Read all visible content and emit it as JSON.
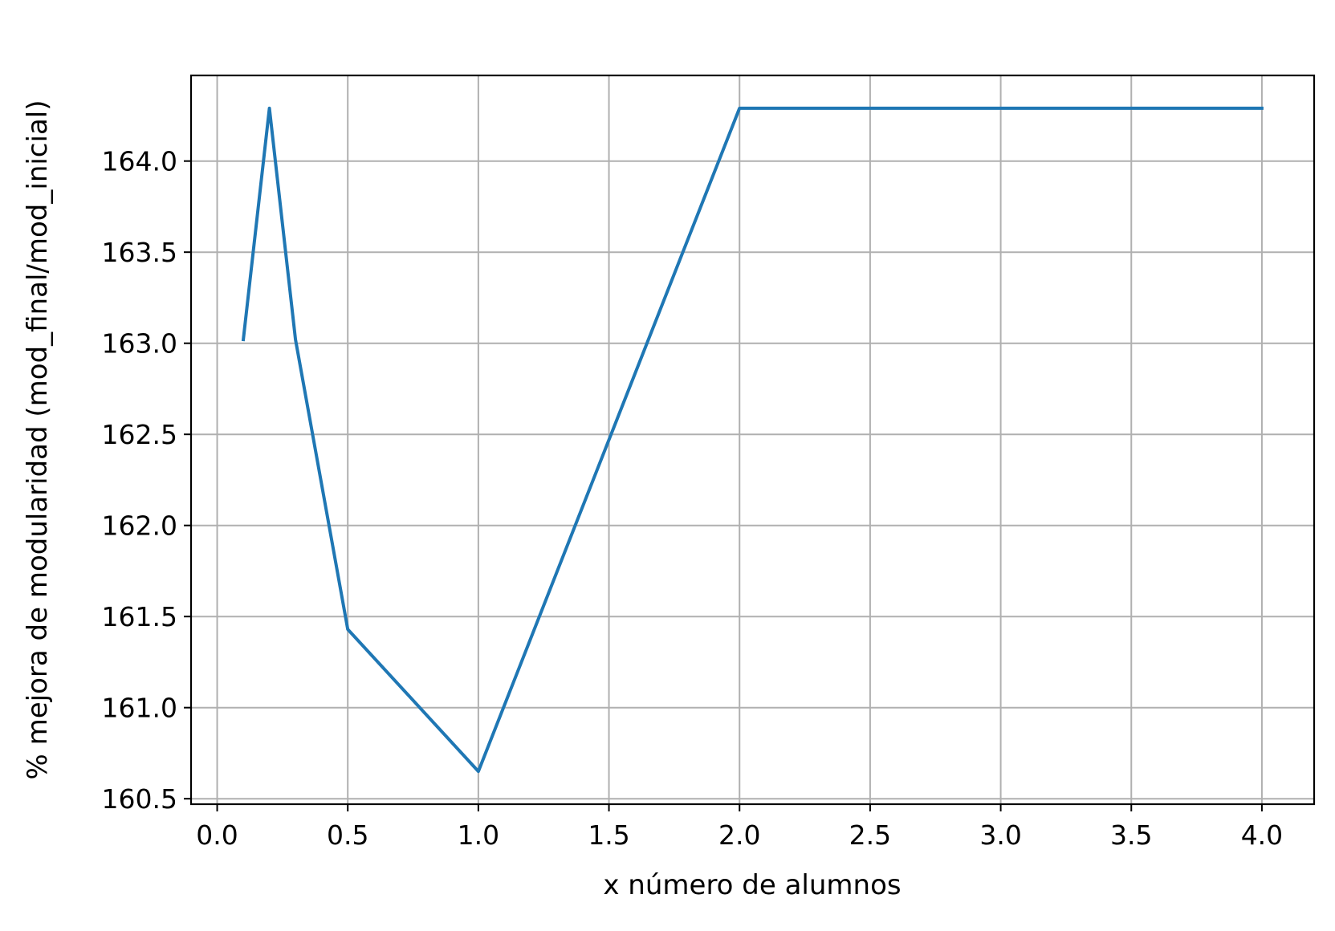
{
  "chart_data": {
    "type": "line",
    "xlabel": "x número de alumnos",
    "ylabel": "% mejora de modularidad (mod_final/mod_inicial)",
    "xlim": [
      -0.1,
      4.2
    ],
    "ylim": [
      160.47,
      164.47
    ],
    "x_ticks": [
      0.0,
      0.5,
      1.0,
      1.5,
      2.0,
      2.5,
      3.0,
      3.5,
      4.0
    ],
    "x_tick_labels": [
      "0.0",
      "0.5",
      "1.0",
      "1.5",
      "2.0",
      "2.5",
      "3.0",
      "3.5",
      "4.0"
    ],
    "y_ticks": [
      160.5,
      161.0,
      161.5,
      162.0,
      162.5,
      163.0,
      163.5,
      164.0
    ],
    "y_tick_labels": [
      "160.5",
      "161.0",
      "161.5",
      "162.0",
      "162.5",
      "163.0",
      "163.5",
      "164.0"
    ],
    "grid": true,
    "series": [
      {
        "color": "#1f77b4",
        "x": [
          0.1,
          0.2,
          0.3,
          0.5,
          1.0,
          2.0,
          3.0,
          4.0
        ],
        "y": [
          163.02,
          164.29,
          163.02,
          161.43,
          160.65,
          164.29,
          164.29,
          164.29
        ]
      }
    ]
  }
}
